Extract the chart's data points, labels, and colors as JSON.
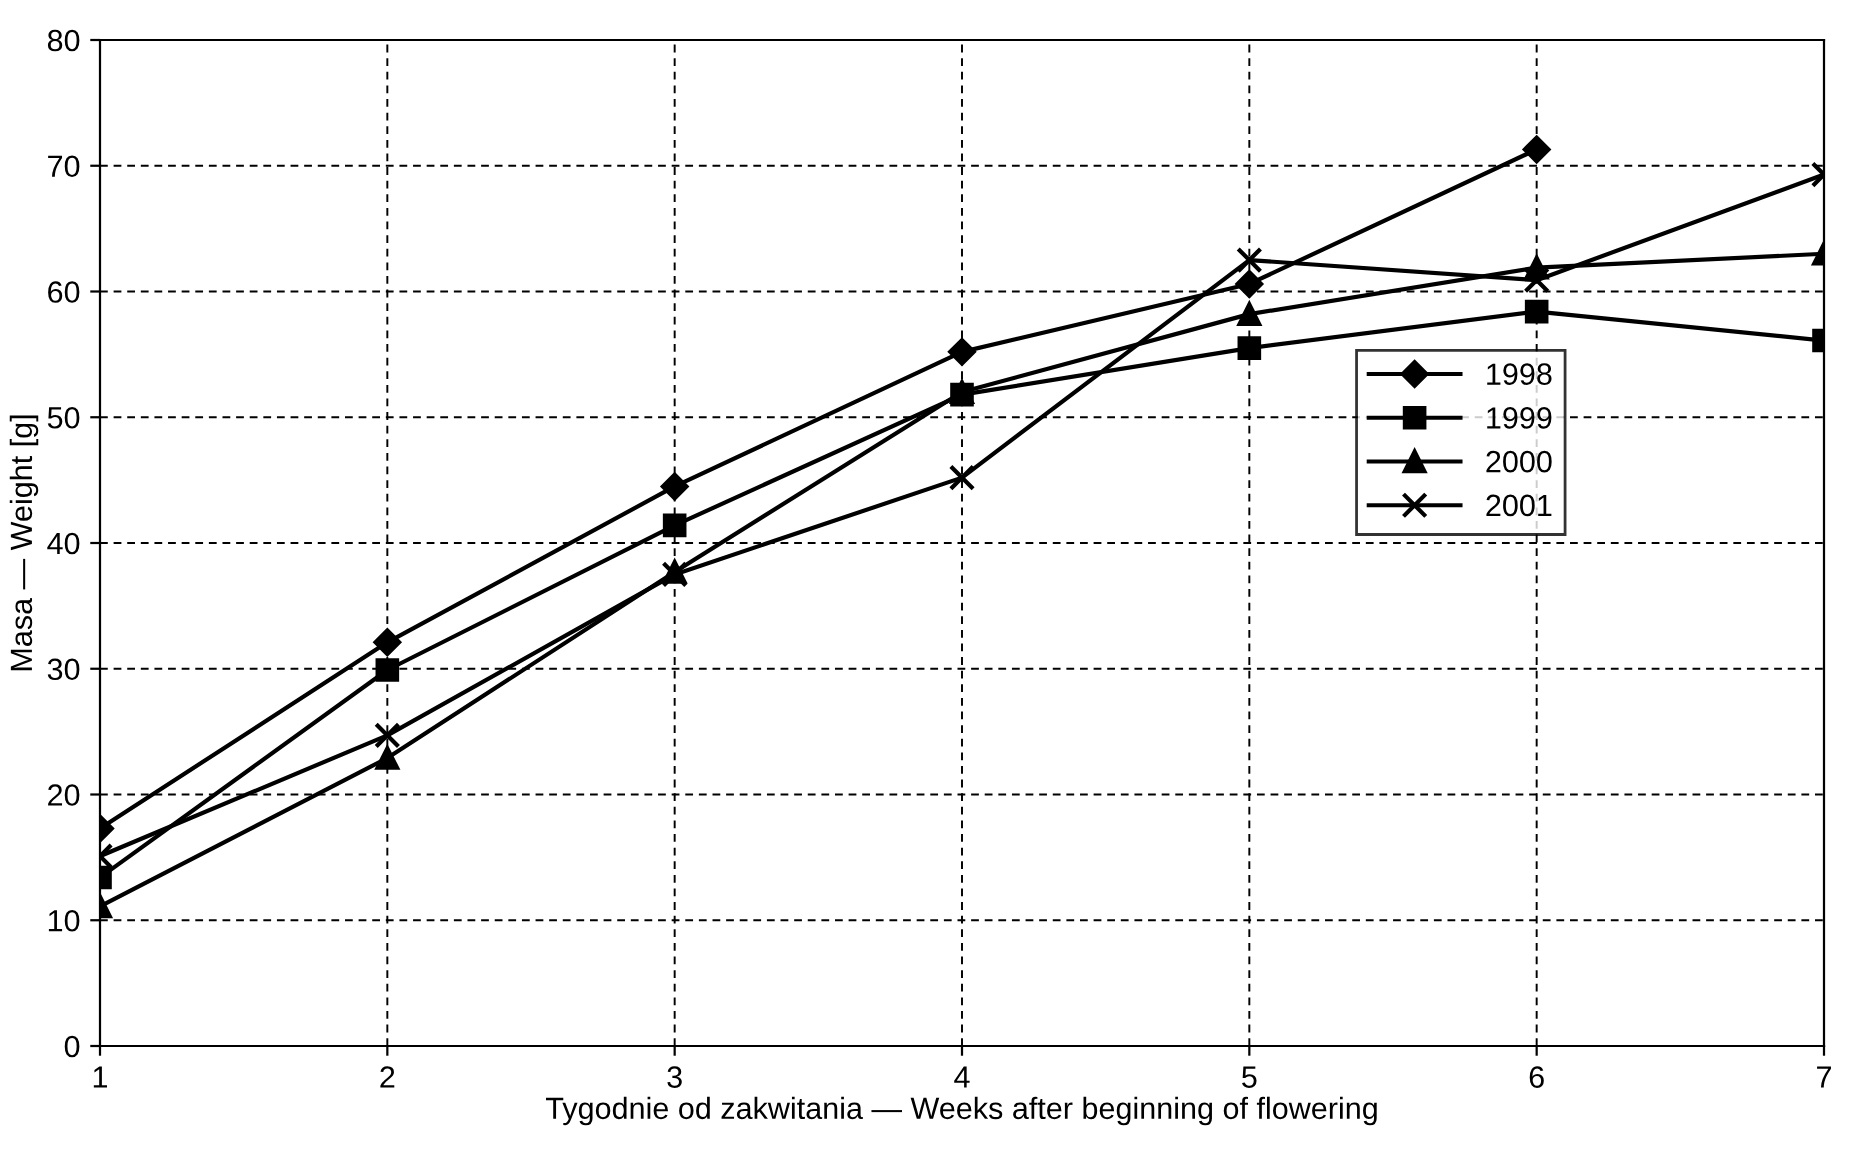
{
  "chart_data": {
    "type": "line",
    "xlabel": "Tygodnie od zakwitania — Weeks after beginning of flowering",
    "ylabel": "Masa — Weight [g]",
    "x": [
      1,
      2,
      3,
      4,
      5,
      6,
      7
    ],
    "series": [
      {
        "name": "1998",
        "color": "#000000",
        "marker": "diamond",
        "values": [
          17.3,
          32.1,
          44.5,
          55.2,
          60.6,
          71.3,
          null
        ]
      },
      {
        "name": "1999",
        "color": "#000000",
        "marker": "square",
        "values": [
          13.4,
          29.9,
          41.4,
          51.8,
          55.5,
          58.4,
          56.1
        ]
      },
      {
        "name": "2000",
        "color": "#000000",
        "marker": "triangle",
        "values": [
          11.1,
          22.9,
          37.7,
          52.0,
          58.2,
          61.9,
          63.0
        ]
      },
      {
        "name": "2001",
        "color": "#000000",
        "marker": "cross",
        "values": [
          15.1,
          24.7,
          37.5,
          45.2,
          62.5,
          60.9,
          69.3
        ]
      }
    ],
    "xlim": [
      1,
      7
    ],
    "ylim": [
      0,
      80
    ],
    "xticks": [
      1,
      2,
      3,
      4,
      5,
      6,
      7
    ],
    "yticks": [
      0,
      10,
      20,
      30,
      40,
      50,
      60,
      70,
      80
    ],
    "grid": true,
    "line_style": "solid",
    "legend": "right"
  }
}
